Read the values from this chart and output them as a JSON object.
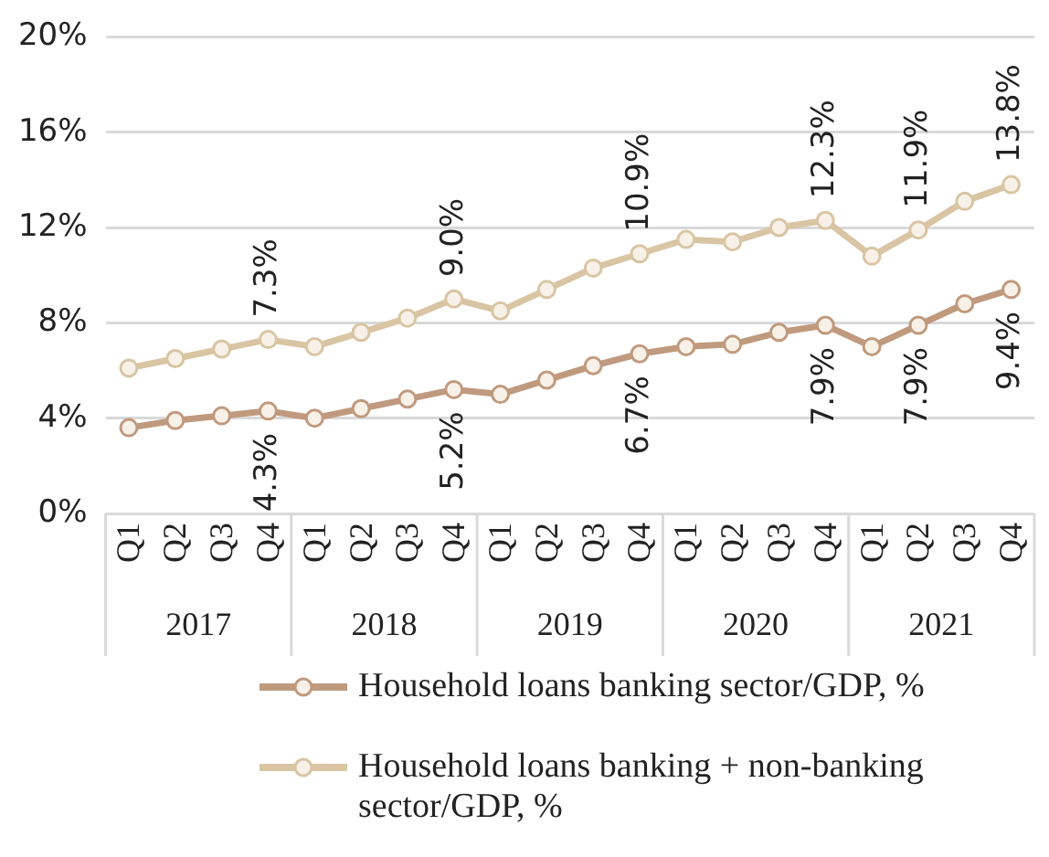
{
  "chart_data": {
    "type": "line",
    "categories": [
      "Q1",
      "Q2",
      "Q3",
      "Q4",
      "Q1",
      "Q2",
      "Q3",
      "Q4",
      "Q1",
      "Q2",
      "Q3",
      "Q4",
      "Q1",
      "Q2",
      "Q3",
      "Q4",
      "Q1",
      "Q2",
      "Q3",
      "Q4"
    ],
    "annotations": [
      "2017",
      "2018",
      "2019",
      "2020",
      "2021"
    ],
    "series": [
      {
        "name": "Household loans banking sector/GDP, %",
        "color": "#c09a7e",
        "values": [
          3.6,
          3.9,
          4.1,
          4.3,
          4.0,
          4.4,
          4.8,
          5.2,
          5.0,
          5.6,
          6.2,
          6.7,
          7.0,
          7.1,
          7.6,
          7.9,
          7.0,
          7.9,
          8.8,
          9.4
        ],
        "value_labels": [
          null,
          null,
          null,
          "4.3%",
          null,
          null,
          null,
          "5.2%",
          null,
          null,
          null,
          "6.7%",
          null,
          null,
          null,
          "7.9%",
          null,
          "7.9%",
          null,
          "9.4%"
        ]
      },
      {
        "name": "Household loans banking + non-banking sector/GDP, %",
        "color": "#d9c5a3",
        "values": [
          6.1,
          6.5,
          6.9,
          7.3,
          7.0,
          7.6,
          8.2,
          9.0,
          8.5,
          9.4,
          10.3,
          10.9,
          11.5,
          11.4,
          12.0,
          12.3,
          10.8,
          11.9,
          13.1,
          13.8
        ],
        "value_labels": [
          null,
          null,
          null,
          "7.3%",
          null,
          null,
          null,
          "9.0%",
          null,
          null,
          null,
          "10.9%",
          null,
          null,
          null,
          "12.3%",
          null,
          "11.9%",
          null,
          "13.8%"
        ]
      }
    ],
    "ylim": [
      0,
      20
    ],
    "yticks": [
      {
        "value": 0,
        "label": "0%"
      },
      {
        "value": 4,
        "label": "4%"
      },
      {
        "value": 8,
        "label": "8%"
      },
      {
        "value": 12,
        "label": "12%"
      },
      {
        "value": 16,
        "label": "16%"
      },
      {
        "value": 20,
        "label": "20%"
      }
    ],
    "grid": "y",
    "legend": "bottom",
    "marker": "circle",
    "line_style": "solid"
  }
}
